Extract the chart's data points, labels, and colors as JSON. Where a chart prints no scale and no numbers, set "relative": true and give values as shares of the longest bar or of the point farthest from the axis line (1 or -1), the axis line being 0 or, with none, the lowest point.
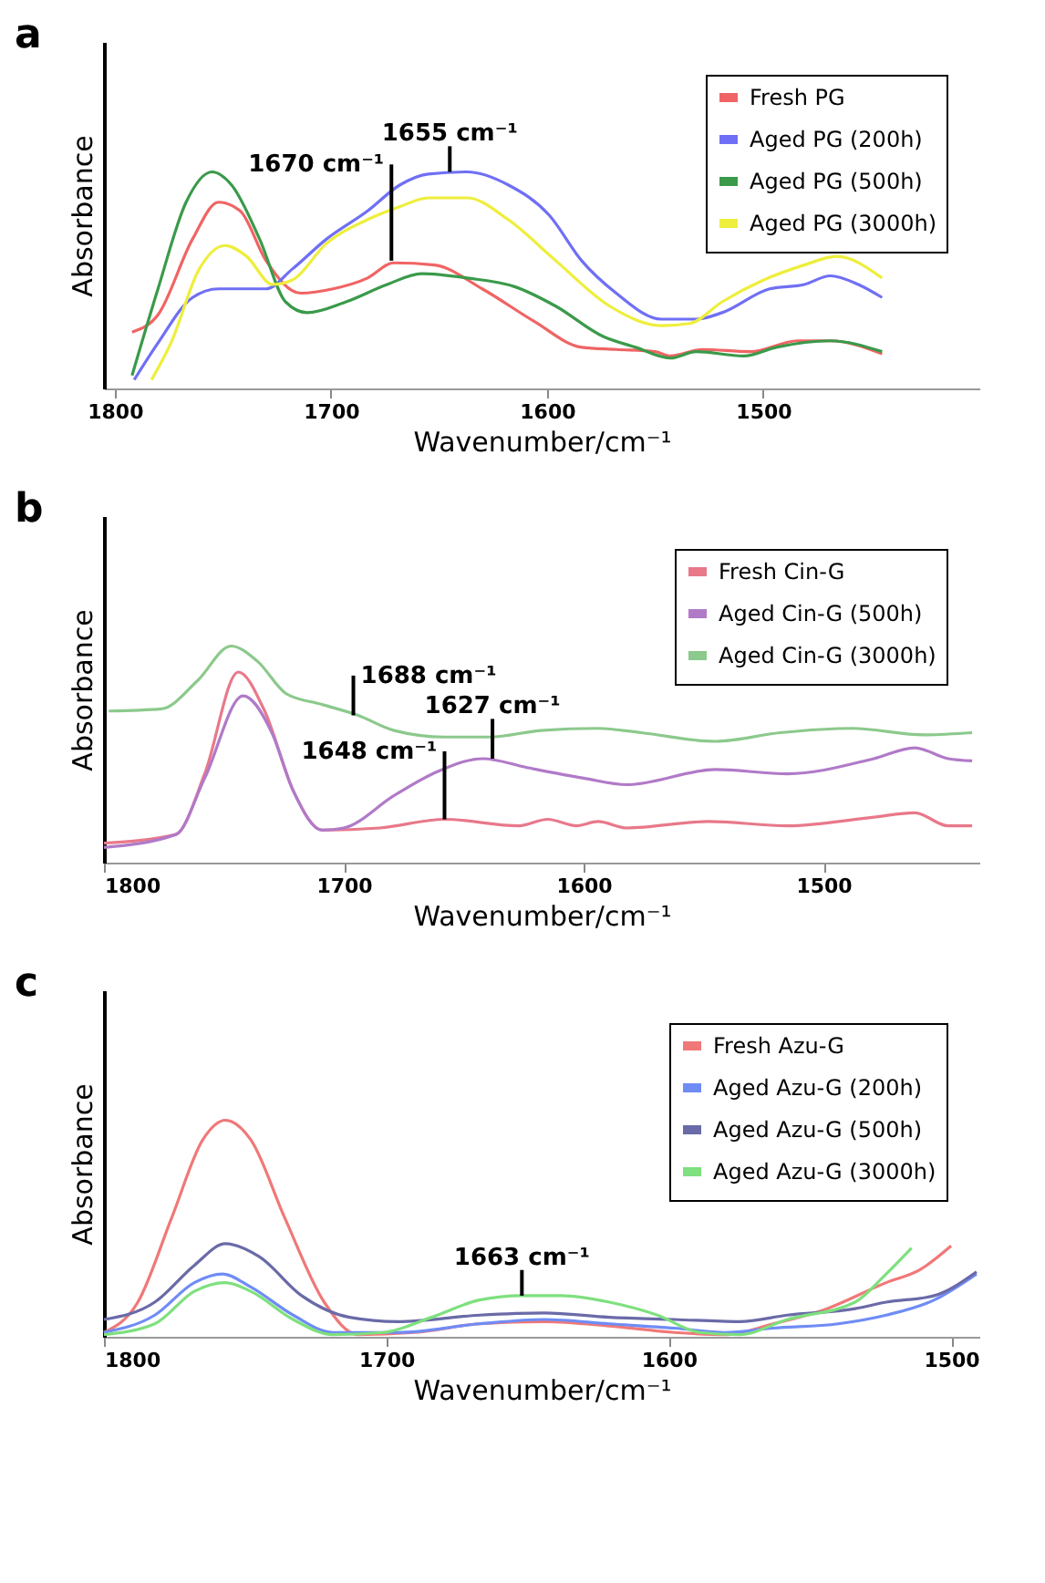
{
  "chart_data": [
    {
      "type": "line",
      "title": "a",
      "xlabel": "Wavenumber/cm⁻¹",
      "ylabel": "Absorbance",
      "relative": true,
      "xlim": [
        1805,
        1400
      ],
      "xticks": [
        1800,
        1700,
        1600,
        1500
      ],
      "grid": false,
      "legend": "top right",
      "tick_labels": "x",
      "line_style": "solid",
      "marker": "none",
      "annotations": [
        {
          "text": "1670 cm⁻¹",
          "x": 1672,
          "y": 0.59
        },
        {
          "text": "1655 cm⁻¹",
          "x": 1645,
          "y": 1.0
        }
      ],
      "series": [
        {
          "name": "Fresh PG",
          "color": "#f06464",
          "x": [
            1792,
            1780,
            1764,
            1752,
            1742,
            1730,
            1714,
            1699,
            1683,
            1671,
            1652,
            1630,
            1606,
            1584,
            1568,
            1550,
            1543,
            1528,
            1506,
            1484,
            1469,
            1445
          ],
          "values": [
            0.26,
            0.34,
            0.69,
            0.86,
            0.82,
            0.59,
            0.44,
            0.46,
            0.51,
            0.58,
            0.57,
            0.46,
            0.31,
            0.19,
            0.18,
            0.17,
            0.15,
            0.18,
            0.17,
            0.22,
            0.22,
            0.16
          ]
        },
        {
          "name": "Aged PG (200h)",
          "color": "#6f6ff5",
          "x": [
            1791,
            1780,
            1764,
            1752,
            1742,
            1730,
            1718,
            1702,
            1683,
            1668,
            1655,
            1637,
            1618,
            1599,
            1584,
            1568,
            1547,
            1531,
            1519,
            1497,
            1481,
            1469,
            1456,
            1445
          ],
          "values": [
            0.04,
            0.21,
            0.42,
            0.46,
            0.46,
            0.46,
            0.55,
            0.69,
            0.82,
            0.94,
            0.99,
            1.0,
            0.94,
            0.8,
            0.59,
            0.44,
            0.32,
            0.32,
            0.35,
            0.46,
            0.48,
            0.52,
            0.48,
            0.42
          ]
        },
        {
          "name": "Aged PG (500h)",
          "color": "#3a9a4a",
          "x": [
            1792,
            1780,
            1767,
            1755,
            1746,
            1733,
            1721,
            1711,
            1693,
            1674,
            1658,
            1637,
            1615,
            1596,
            1574,
            1559,
            1543,
            1531,
            1509,
            1494,
            1469,
            1445
          ],
          "values": [
            0.06,
            0.46,
            0.86,
            1.0,
            0.94,
            0.69,
            0.4,
            0.35,
            0.4,
            0.48,
            0.53,
            0.51,
            0.47,
            0.38,
            0.24,
            0.19,
            0.14,
            0.17,
            0.15,
            0.19,
            0.22,
            0.17
          ]
        },
        {
          "name": "Aged PG (3000h)",
          "color": "#eeee3c",
          "x": [
            1783,
            1774,
            1761,
            1749,
            1739,
            1727,
            1718,
            1702,
            1683,
            1668,
            1655,
            1637,
            1618,
            1596,
            1571,
            1547,
            1534,
            1519,
            1500,
            1481,
            1466,
            1445
          ],
          "values": [
            0.04,
            0.21,
            0.55,
            0.66,
            0.61,
            0.48,
            0.5,
            0.67,
            0.78,
            0.84,
            0.88,
            0.88,
            0.78,
            0.59,
            0.38,
            0.29,
            0.3,
            0.4,
            0.5,
            0.57,
            0.61,
            0.51
          ]
        }
      ]
    },
    {
      "type": "line",
      "title": "b",
      "xlabel": "Wavenumber/cm⁻¹",
      "ylabel": "Absorbance",
      "relative": true,
      "xlim": [
        1800,
        1435
      ],
      "xticks": [
        1800,
        1700,
        1600,
        1500
      ],
      "grid": false,
      "legend": "top right",
      "tick_labels": "x",
      "line_style": "solid",
      "marker": "none",
      "annotations": [
        {
          "text": "1688 cm⁻¹",
          "x": 1696,
          "y": 0.68
        },
        {
          "text": "1627 cm⁻¹",
          "x": 1638,
          "y": 0.48
        },
        {
          "text": "1648 cm⁻¹",
          "x": 1658,
          "y": 0.2
        }
      ],
      "series": [
        {
          "name": "Fresh Cin-G",
          "color": "#e8788a",
          "x": [
            1800,
            1770,
            1758,
            1744,
            1733,
            1721,
            1709,
            1685,
            1658,
            1627,
            1615,
            1603,
            1594,
            1582,
            1548,
            1515,
            1479,
            1462,
            1448,
            1438
          ],
          "values": [
            0.09,
            0.13,
            0.41,
            0.88,
            0.7,
            0.33,
            0.15,
            0.16,
            0.2,
            0.17,
            0.2,
            0.17,
            0.19,
            0.16,
            0.19,
            0.17,
            0.21,
            0.23,
            0.17,
            0.17
          ]
        },
        {
          "name": "Aged Cin-G (500h)",
          "color": "#b07ac8",
          "x": [
            1800,
            1770,
            1758,
            1742,
            1730,
            1721,
            1709,
            1700,
            1679,
            1661,
            1642,
            1624,
            1600,
            1582,
            1545,
            1515,
            1479,
            1462,
            1448,
            1438
          ],
          "values": [
            0.07,
            0.13,
            0.39,
            0.77,
            0.6,
            0.33,
            0.15,
            0.16,
            0.31,
            0.42,
            0.48,
            0.44,
            0.39,
            0.36,
            0.43,
            0.41,
            0.48,
            0.53,
            0.48,
            0.47
          ]
        },
        {
          "name": "Aged Cin-G (3000h)",
          "color": "#8cc98c",
          "x": [
            1798,
            1776,
            1761,
            1747,
            1736,
            1724,
            1709,
            1694,
            1679,
            1658,
            1639,
            1618,
            1594,
            1576,
            1545,
            1518,
            1488,
            1458,
            1438
          ],
          "values": [
            0.7,
            0.71,
            0.84,
            1.0,
            0.93,
            0.78,
            0.73,
            0.68,
            0.61,
            0.58,
            0.58,
            0.61,
            0.62,
            0.6,
            0.56,
            0.6,
            0.62,
            0.59,
            0.6
          ]
        }
      ]
    },
    {
      "type": "line",
      "title": "c",
      "xlabel": "Wavenumber/cm⁻¹",
      "ylabel": "Absorbance",
      "relative": true,
      "xlim": [
        1800,
        1490
      ],
      "xticks": [
        1800,
        1700,
        1600,
        1500
      ],
      "grid": false,
      "legend": "top right",
      "tick_labels": "x",
      "line_style": "solid",
      "marker": "none",
      "annotations": [
        {
          "text": "1663 cm⁻¹",
          "x": 1652,
          "y": 0.19
        }
      ],
      "series": [
        {
          "name": "Fresh Azu-G",
          "color": "#f07878",
          "x": [
            1800,
            1788,
            1776,
            1765,
            1757,
            1748,
            1736,
            1722,
            1710,
            1690,
            1667,
            1644,
            1621,
            1598,
            1580,
            1563,
            1546,
            1523,
            1511,
            1500
          ],
          "values": [
            0.02,
            0.16,
            0.55,
            0.91,
            1.0,
            0.91,
            0.55,
            0.16,
            0.01,
            0.02,
            0.06,
            0.07,
            0.05,
            0.02,
            0.01,
            0.06,
            0.12,
            0.25,
            0.31,
            0.42
          ]
        },
        {
          "name": "Aged Azu-G (200h)",
          "color": "#6f8cf5",
          "x": [
            1800,
            1782,
            1768,
            1758,
            1748,
            1733,
            1719,
            1696,
            1667,
            1644,
            1621,
            1598,
            1580,
            1563,
            1540,
            1523,
            1506,
            1491
          ],
          "values": [
            0.02,
            0.1,
            0.25,
            0.29,
            0.23,
            0.1,
            0.02,
            0.02,
            0.06,
            0.08,
            0.06,
            0.04,
            0.02,
            0.04,
            0.06,
            0.1,
            0.17,
            0.29
          ]
        },
        {
          "name": "Aged Azu-G (500h)",
          "color": "#6a6aa8",
          "x": [
            1800,
            1782,
            1768,
            1757,
            1745,
            1730,
            1713,
            1696,
            1667,
            1644,
            1621,
            1598,
            1575,
            1558,
            1534,
            1523,
            1506,
            1491
          ],
          "values": [
            0.08,
            0.16,
            0.33,
            0.43,
            0.37,
            0.19,
            0.09,
            0.07,
            0.1,
            0.11,
            0.09,
            0.08,
            0.07,
            0.1,
            0.13,
            0.16,
            0.19,
            0.3
          ]
        },
        {
          "name": "Aged Azu-G (3000h)",
          "color": "#7ee07e",
          "x": [
            1800,
            1782,
            1768,
            1757,
            1748,
            1733,
            1719,
            1701,
            1684,
            1667,
            1652,
            1638,
            1621,
            1604,
            1589,
            1575,
            1558,
            1534,
            1523,
            1514
          ],
          "values": [
            0.01,
            0.06,
            0.21,
            0.25,
            0.21,
            0.08,
            0.01,
            0.02,
            0.09,
            0.17,
            0.19,
            0.19,
            0.16,
            0.1,
            0.02,
            0.01,
            0.08,
            0.16,
            0.29,
            0.41
          ]
        }
      ]
    }
  ]
}
